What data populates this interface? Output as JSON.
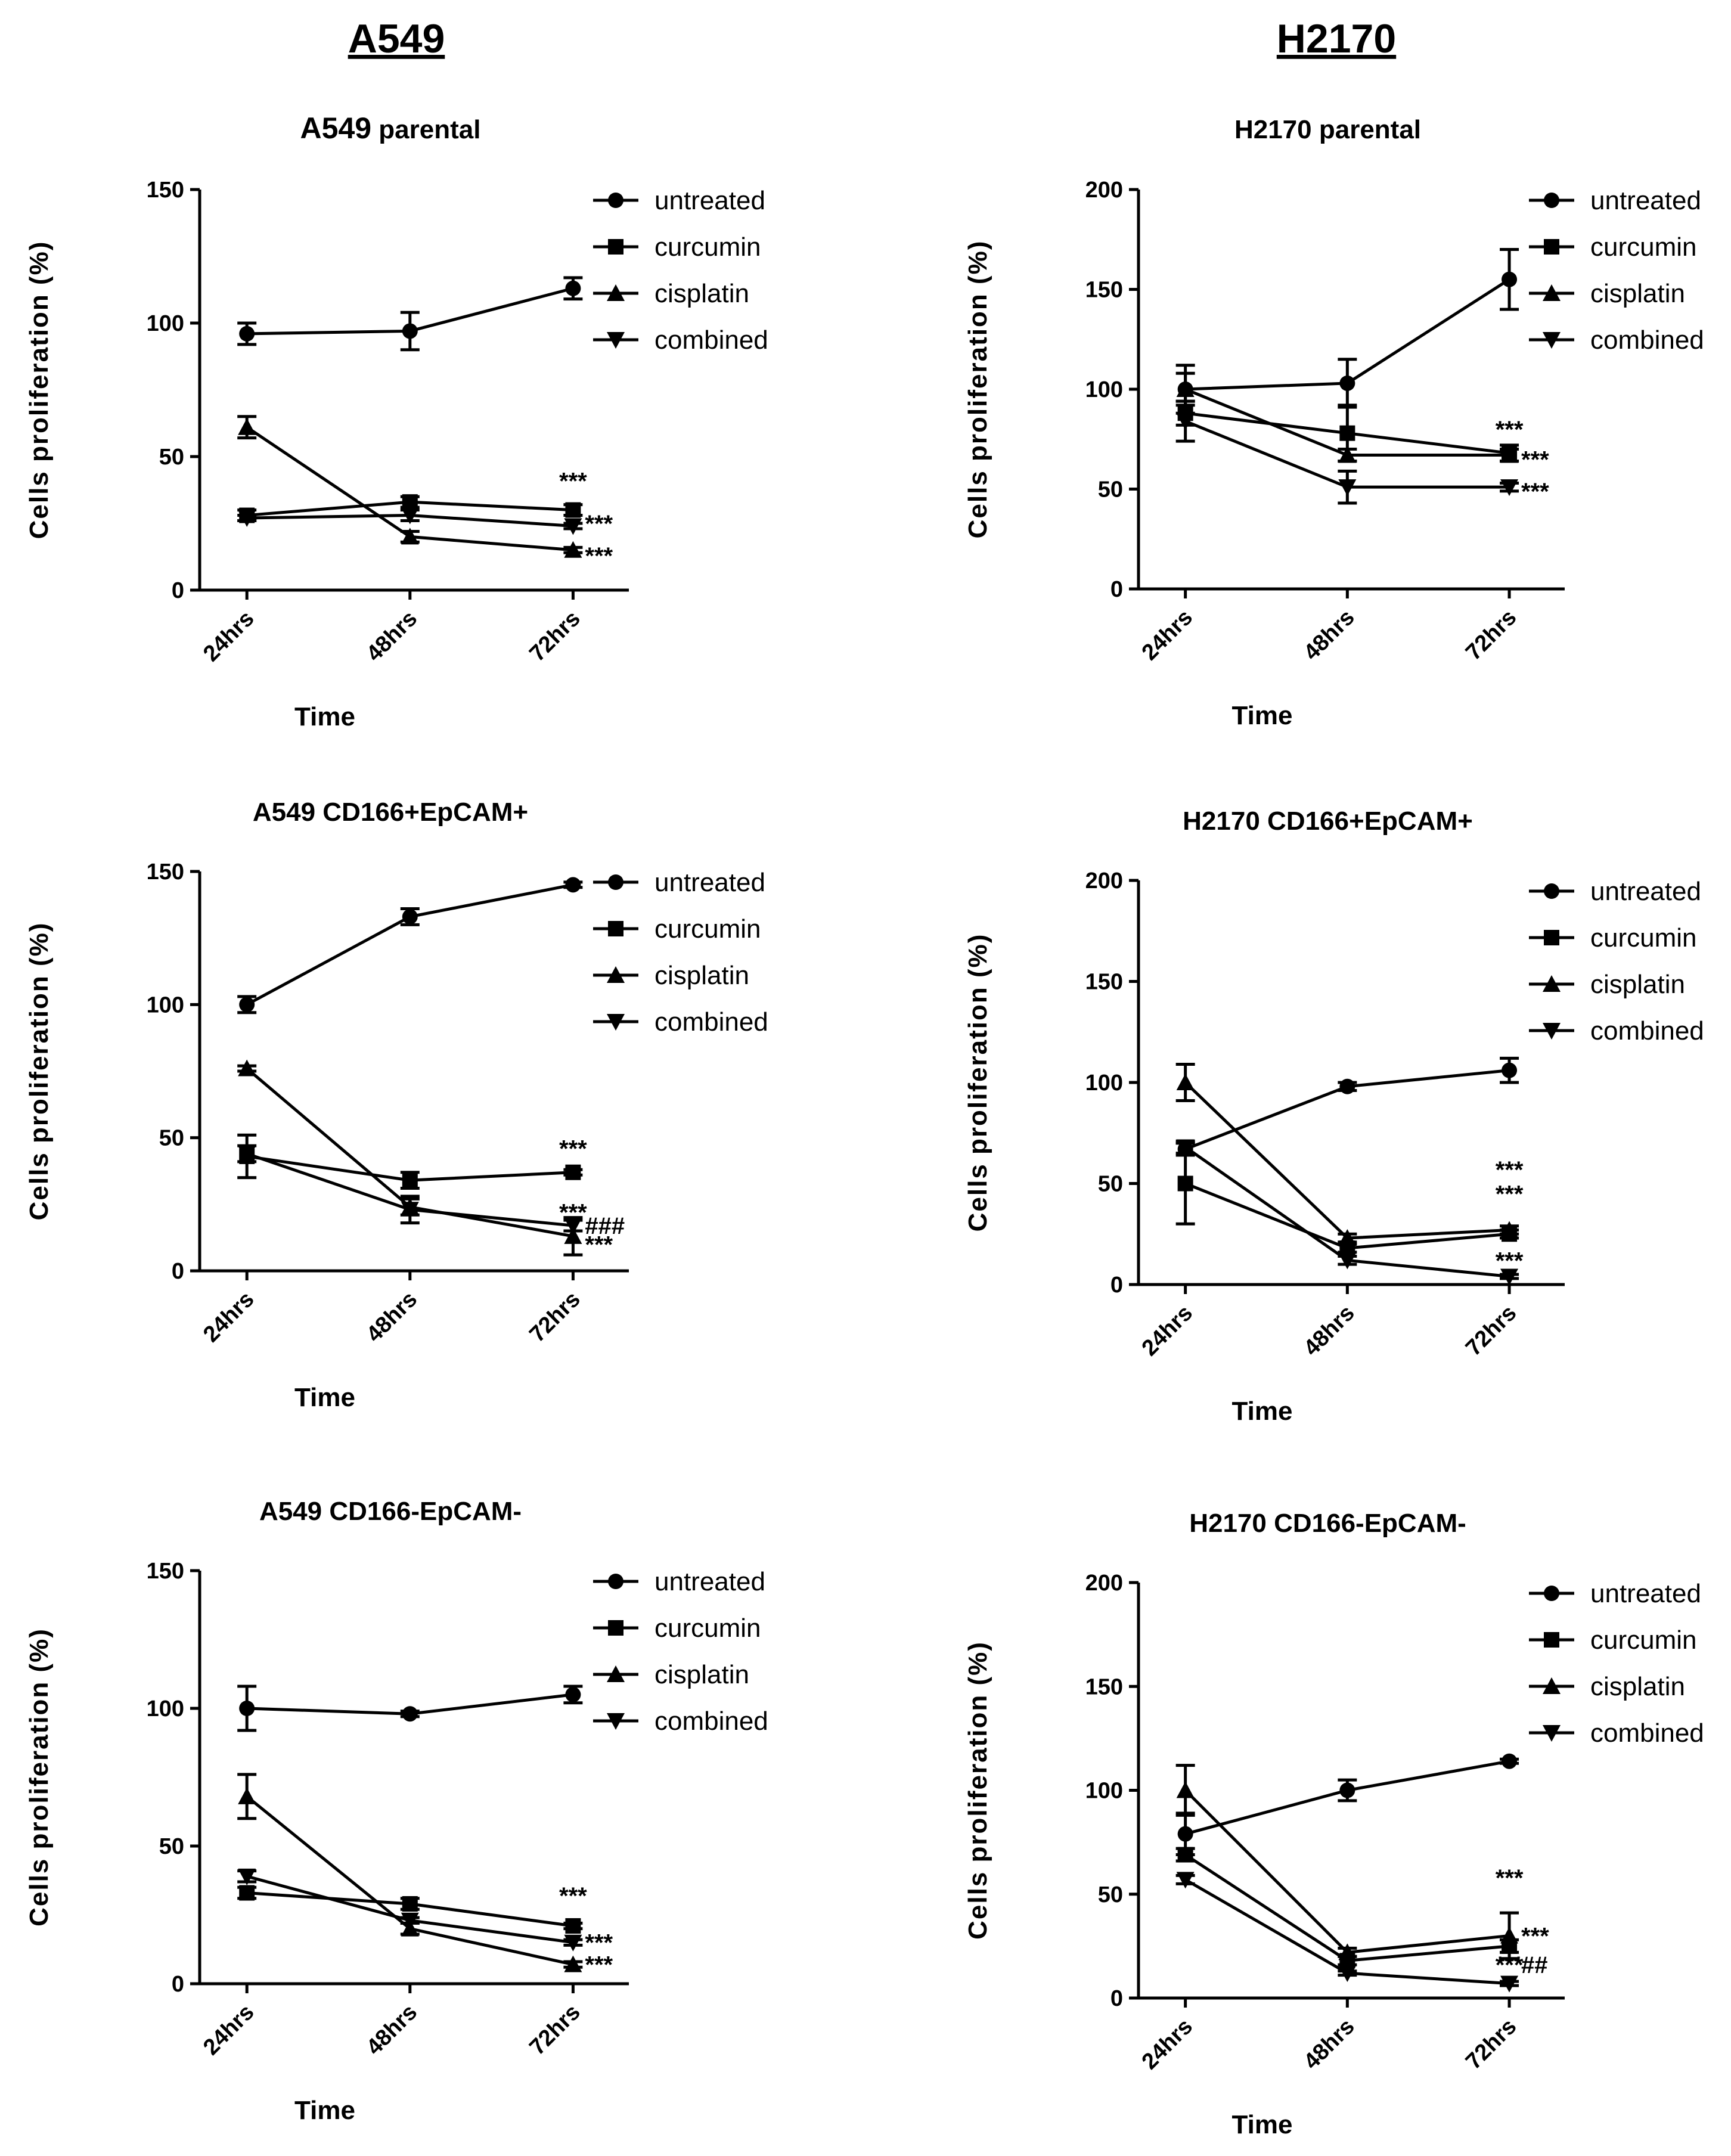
{
  "column_titles": [
    "A549",
    "H2170"
  ],
  "chart_data": [
    {
      "type": "line",
      "title_main": "A549",
      "title_sub": "parental",
      "xlabel": "Time",
      "ylabel": "Cells proliferation (%)",
      "categories": [
        "24hrs",
        "48hrs",
        "72hrs"
      ],
      "ylim": [
        0,
        150
      ],
      "yticks": [
        0,
        50,
        100,
        150
      ],
      "legend_position": "top-right",
      "series": [
        {
          "name": "untreated",
          "marker": "circle",
          "values": [
            96,
            97,
            113
          ],
          "errors": [
            4,
            7,
            4
          ]
        },
        {
          "name": "curcumin",
          "marker": "square",
          "values": [
            28,
            33,
            30
          ],
          "errors": [
            2,
            2,
            2
          ]
        },
        {
          "name": "cisplatin",
          "marker": "triangle-up",
          "values": [
            61,
            20,
            15
          ],
          "errors": [
            4,
            2,
            1
          ]
        },
        {
          "name": "combined",
          "marker": "triangle-down",
          "values": [
            27,
            28,
            24
          ],
          "errors": [
            1,
            2,
            1
          ]
        }
      ],
      "annotations": [
        {
          "text": "***",
          "x": "72hrs",
          "y": 41,
          "side": "center"
        },
        {
          "text": "***",
          "x": "72hrs",
          "y": 25,
          "side": "right"
        },
        {
          "text": "***",
          "x": "72hrs",
          "y": 13,
          "side": "right"
        }
      ]
    },
    {
      "type": "line",
      "title_main": "H2170 parental",
      "title_sub": "",
      "xlabel": "Time",
      "ylabel": "Cells proliferation (%)",
      "categories": [
        "24hrs",
        "48hrs",
        "72hrs"
      ],
      "ylim": [
        0,
        200
      ],
      "yticks": [
        0,
        50,
        100,
        150,
        200
      ],
      "legend_position": "top-right",
      "series": [
        {
          "name": "untreated",
          "marker": "circle",
          "values": [
            100,
            103,
            155
          ],
          "errors": [
            12,
            12,
            15
          ]
        },
        {
          "name": "curcumin",
          "marker": "square",
          "values": [
            88,
            78,
            68
          ],
          "errors": [
            6,
            14,
            4
          ]
        },
        {
          "name": "cisplatin",
          "marker": "triangle-up",
          "values": [
            100,
            67,
            67
          ],
          "errors": [
            8,
            3,
            3
          ]
        },
        {
          "name": "combined",
          "marker": "triangle-down",
          "values": [
            84,
            51,
            51
          ],
          "errors": [
            10,
            8,
            2
          ]
        }
      ],
      "annotations": [
        {
          "text": "***",
          "x": "72hrs",
          "y": 80,
          "side": "center"
        },
        {
          "text": "***",
          "x": "72hrs",
          "y": 65,
          "side": "right"
        },
        {
          "text": "***",
          "x": "72hrs",
          "y": 49,
          "side": "right"
        }
      ]
    },
    {
      "type": "line",
      "title_main": "A549 CD166+EpCAM+",
      "title_sub": "",
      "xlabel": "Time",
      "ylabel": "Cells proliferation (%)",
      "categories": [
        "24hrs",
        "48hrs",
        "72hrs"
      ],
      "ylim": [
        0,
        150
      ],
      "yticks": [
        0,
        50,
        100,
        150
      ],
      "legend_position": "top-right",
      "series": [
        {
          "name": "untreated",
          "marker": "circle",
          "values": [
            100,
            133,
            145
          ],
          "errors": [
            3,
            3,
            1
          ]
        },
        {
          "name": "curcumin",
          "marker": "square",
          "values": [
            43,
            34,
            37
          ],
          "errors": [
            8,
            3,
            1
          ]
        },
        {
          "name": "cisplatin",
          "marker": "triangle-up",
          "values": [
            76,
            24,
            13
          ],
          "errors": [
            1,
            3,
            7
          ]
        },
        {
          "name": "combined",
          "marker": "triangle-down",
          "values": [
            44,
            23,
            17
          ],
          "errors": [
            3,
            5,
            2
          ]
        }
      ],
      "annotations": [
        {
          "text": "***",
          "x": "72hrs",
          "y": 46,
          "side": "center"
        },
        {
          "text": "***",
          "x": "72hrs",
          "y": 22,
          "side": "center"
        },
        {
          "text": "###",
          "x": "72hrs",
          "y": 17,
          "side": "right"
        },
        {
          "text": "***",
          "x": "72hrs",
          "y": 10,
          "side": "right"
        }
      ]
    },
    {
      "type": "line",
      "title_main": "H2170 CD166+EpCAM+",
      "title_sub": "",
      "xlabel": "Time",
      "ylabel": "Cells proliferation (%)",
      "categories": [
        "24hrs",
        "48hrs",
        "72hrs"
      ],
      "ylim": [
        0,
        200
      ],
      "yticks": [
        0,
        50,
        100,
        150,
        200
      ],
      "legend_position": "top-right",
      "series": [
        {
          "name": "untreated",
          "marker": "circle",
          "values": [
            67,
            98,
            106
          ],
          "errors": [
            3,
            2,
            6
          ]
        },
        {
          "name": "curcumin",
          "marker": "square",
          "values": [
            50,
            18,
            25
          ],
          "errors": [
            20,
            2,
            2
          ]
        },
        {
          "name": "cisplatin",
          "marker": "triangle-up",
          "values": [
            100,
            23,
            27
          ],
          "errors": [
            9,
            2,
            2
          ]
        },
        {
          "name": "combined",
          "marker": "triangle-down",
          "values": [
            68,
            12,
            4
          ],
          "errors": [
            3,
            2,
            1
          ]
        }
      ],
      "annotations": [
        {
          "text": "***",
          "x": "72hrs",
          "y": 57,
          "side": "center"
        },
        {
          "text": "***",
          "x": "72hrs",
          "y": 45,
          "side": "center"
        },
        {
          "text": "***",
          "x": "72hrs",
          "y": 12,
          "side": "center"
        }
      ]
    },
    {
      "type": "line",
      "title_main": "A549 CD166-EpCAM-",
      "title_sub": "",
      "xlabel": "Time",
      "ylabel": "Cells proliferation (%)",
      "categories": [
        "24hrs",
        "48hrs",
        "72hrs"
      ],
      "ylim": [
        0,
        150
      ],
      "yticks": [
        0,
        50,
        100,
        150
      ],
      "legend_position": "top-right",
      "series": [
        {
          "name": "untreated",
          "marker": "circle",
          "values": [
            100,
            98,
            105
          ],
          "errors": [
            8,
            1,
            3
          ]
        },
        {
          "name": "curcumin",
          "marker": "square",
          "values": [
            33,
            29,
            21
          ],
          "errors": [
            2,
            2,
            1
          ]
        },
        {
          "name": "cisplatin",
          "marker": "triangle-up",
          "values": [
            68,
            20,
            7
          ],
          "errors": [
            8,
            2,
            1
          ]
        },
        {
          "name": "combined",
          "marker": "triangle-down",
          "values": [
            39,
            23,
            15
          ],
          "errors": [
            2,
            1,
            1
          ]
        }
      ],
      "annotations": [
        {
          "text": "***",
          "x": "72hrs",
          "y": 32,
          "side": "center"
        },
        {
          "text": "***",
          "x": "72hrs",
          "y": 15,
          "side": "right"
        },
        {
          "text": "***",
          "x": "72hrs",
          "y": 7,
          "side": "right"
        }
      ]
    },
    {
      "type": "line",
      "title_main": "H2170 CD166-EpCAM-",
      "title_sub": "",
      "xlabel": "Time",
      "ylabel": "Cells proliferation (%)",
      "categories": [
        "24hrs",
        "48hrs",
        "72hrs"
      ],
      "ylim": [
        0,
        200
      ],
      "yticks": [
        0,
        50,
        100,
        150,
        200
      ],
      "legend_position": "top-right",
      "series": [
        {
          "name": "untreated",
          "marker": "circle",
          "values": [
            79,
            100,
            114
          ],
          "errors": [
            10,
            5,
            1
          ]
        },
        {
          "name": "curcumin",
          "marker": "square",
          "values": [
            69,
            18,
            25
          ],
          "errors": [
            3,
            2,
            3
          ]
        },
        {
          "name": "cisplatin",
          "marker": "triangle-up",
          "values": [
            100,
            22,
            30
          ],
          "errors": [
            12,
            2,
            11
          ]
        },
        {
          "name": "combined",
          "marker": "triangle-down",
          "values": [
            57,
            12,
            7
          ],
          "errors": [
            2,
            1,
            1
          ]
        }
      ],
      "annotations": [
        {
          "text": "***",
          "x": "72hrs",
          "y": 58,
          "side": "center"
        },
        {
          "text": "***",
          "x": "72hrs",
          "y": 30,
          "side": "right"
        },
        {
          "text": "***",
          "x": "72hrs",
          "y": 16,
          "side": "center"
        },
        {
          "text": "##",
          "x": "72hrs",
          "y": 16,
          "side": "right"
        }
      ]
    }
  ]
}
